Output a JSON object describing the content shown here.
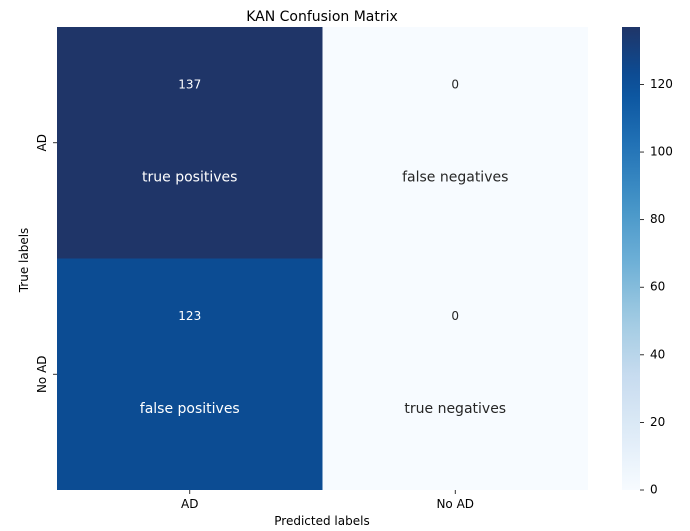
{
  "chart_data": {
    "type": "heatmap",
    "title": "KAN Confusion Matrix",
    "xlabel": "Predicted labels",
    "ylabel": "True labels",
    "x_categories": [
      "AD",
      "No AD"
    ],
    "y_categories": [
      "AD",
      "No AD"
    ],
    "values": [
      [
        137,
        0
      ],
      [
        123,
        0
      ]
    ],
    "annotations": [
      [
        "true positives",
        "false negatives"
      ],
      [
        "false positives",
        "true negatives"
      ]
    ],
    "colormap": "Blues",
    "colorbar": {
      "range": [
        0,
        137
      ],
      "ticks": [
        0,
        20,
        40,
        60,
        80,
        100,
        120
      ]
    },
    "grid": false
  }
}
